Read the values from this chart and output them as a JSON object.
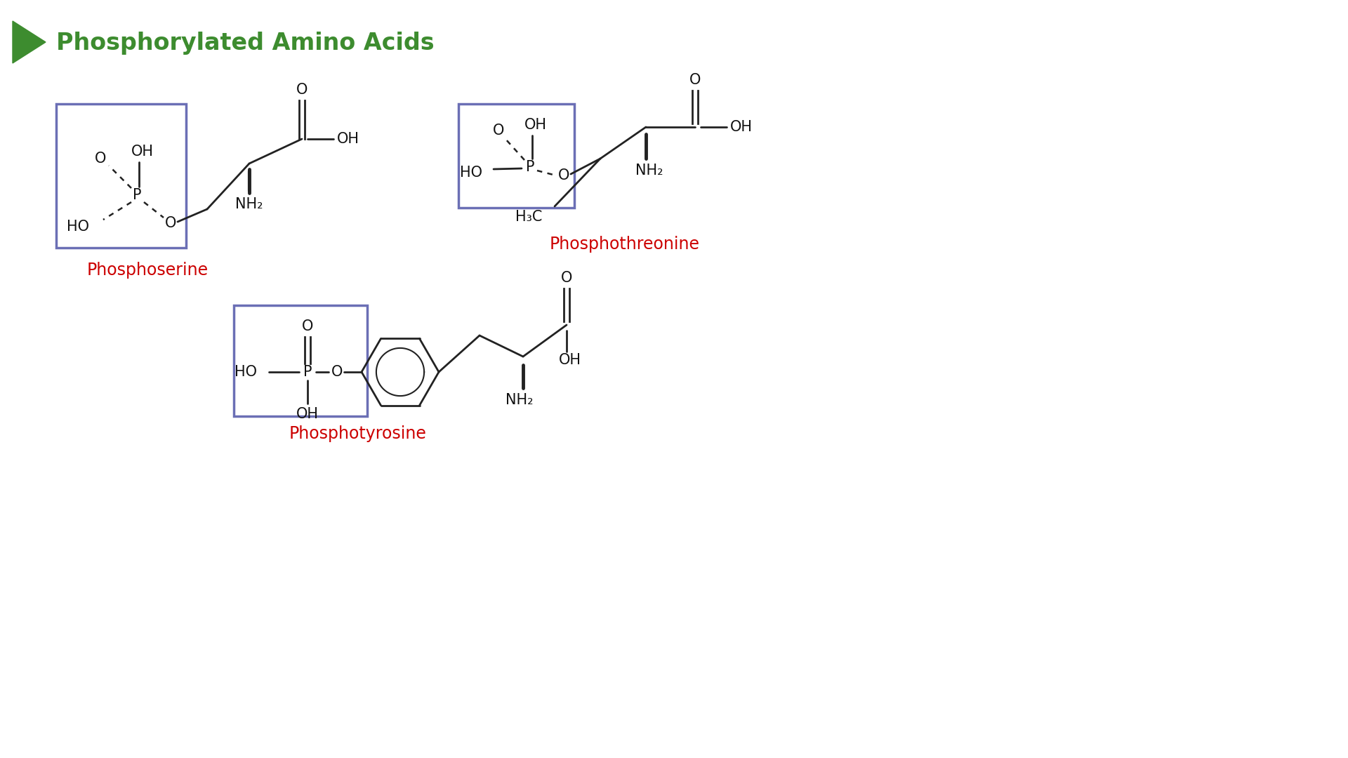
{
  "title": "Phosphorylated Amino Acids",
  "title_color": "#3d8c2f",
  "title_fontsize": 24,
  "bg_color": "#ffffff",
  "arrow_color": "#3d8c2f",
  "box_color": "#6b6fb5",
  "name_color": "#cc0000",
  "bond_color": "#222222",
  "atom_color": "#111111",
  "names": [
    "Phosphoserine",
    "Phosphotyrosine",
    "Phosphothreonine"
  ],
  "name_fontsize": 17
}
